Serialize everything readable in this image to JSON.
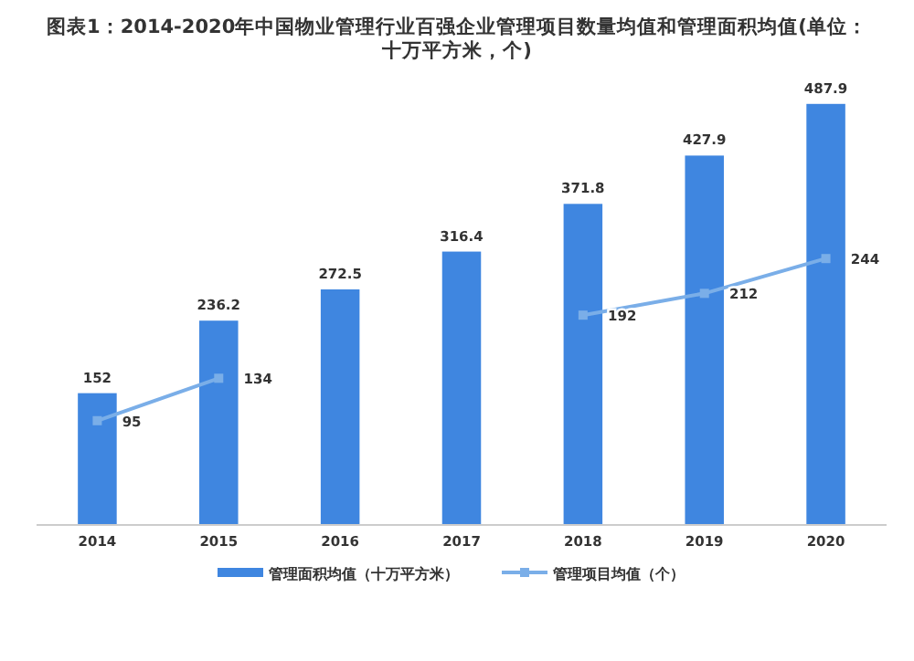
{
  "chart_data": {
    "type": "bar",
    "title": "图表1：2014-2020年中国物业管理行业百强企业管理项目数量均值和管理面积均值(单位：十万平方米，个)",
    "categories": [
      "2014",
      "2015",
      "2016",
      "2017",
      "2018",
      "2019",
      "2020"
    ],
    "series": [
      {
        "name": "管理面积均值（十万平方米）",
        "color": "#3f86e0",
        "values": [
          152,
          236.2,
          272.5,
          316.4,
          371.8,
          427.9,
          487.9
        ]
      },
      {
        "name": "管理项目均值（个）",
        "type": "line",
        "axis": "y2",
        "color": "#7aaee8",
        "marker": "square",
        "values": [
          95,
          134,
          null,
          null,
          192,
          212,
          244
        ],
        "value_labels": [
          "95",
          "134",
          null,
          null,
          "192",
          "212",
          "244"
        ]
      }
    ],
    "data_labels": true,
    "legend": "bottom"
  }
}
